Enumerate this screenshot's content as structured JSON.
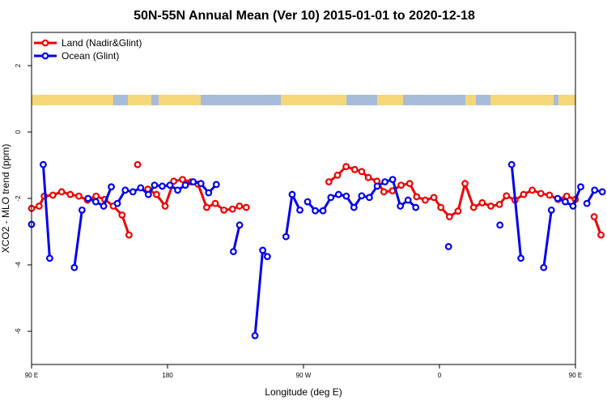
{
  "chart_data": {
    "type": "line",
    "title": "50N-55N Annual Mean (Ver 10)   2015-01-01 to 2020-12-18",
    "xlabel": "Longitude (deg E)",
    "ylabel": "XCO2 - MLO trend (ppm)",
    "xlim": [
      90,
      450
    ],
    "ylim": [
      -7,
      3
    ],
    "x_ticks": [
      {
        "value": 90,
        "label": "90 E"
      },
      {
        "value": 180,
        "label": "180"
      },
      {
        "value": 270,
        "label": "90 W"
      },
      {
        "value": 360,
        "label": "0"
      },
      {
        "value": 450,
        "label": "90 E"
      },
      {
        "value": 540,
        "label": "180"
      }
    ],
    "y_ticks": [
      -6,
      -4,
      -2,
      0,
      2
    ],
    "legend_position": "top-left",
    "grid": false,
    "land_mask_color": "#f5d77a",
    "ocean_mask_color": "#a7bcd8",
    "series": [
      {
        "name": "Land (Nadir&Glint)",
        "color": "#ee0000",
        "segments": [
          [
            [
              90.0,
              -2.3
            ],
            [
              95.0,
              -2.23
            ],
            [
              98.4,
              -1.93
            ],
            [
              104.1,
              -1.9
            ],
            [
              109.9,
              -1.8
            ],
            [
              115.6,
              -1.88
            ],
            [
              121.3,
              -1.93
            ],
            [
              127.0,
              -2.05
            ],
            [
              132.7,
              -1.93
            ],
            [
              138.4,
              -2.03
            ],
            [
              144.1,
              -2.23
            ],
            [
              149.9,
              -2.5
            ],
            [
              154.5,
              -3.1
            ]
          ],
          [
            [
              160.2,
              -0.98
            ]
          ],
          [
            [
              167.0,
              -1.72
            ],
            [
              172.7,
              -1.88
            ],
            [
              178.4,
              -2.23
            ],
            [
              184.1,
              -1.48
            ],
            [
              189.9,
              -1.43
            ],
            [
              195.6,
              -1.5
            ],
            [
              200.2,
              -1.57
            ],
            [
              205.9,
              -2.27
            ],
            [
              211.6,
              -2.15
            ],
            [
              217.3,
              -2.35
            ],
            [
              223.0,
              -2.32
            ],
            [
              227.6,
              -2.23
            ],
            [
              232.1,
              -2.27
            ]
          ],
          [
            [
              286.8,
              -1.5
            ],
            [
              292.5,
              -1.3
            ],
            [
              298.2,
              -1.04
            ],
            [
              303.9,
              -1.13
            ],
            [
              308.5,
              -1.19
            ],
            [
              312.9,
              -1.37
            ],
            [
              318.6,
              -1.48
            ],
            [
              323.2,
              -1.8
            ],
            [
              328.9,
              -1.77
            ],
            [
              334.6,
              -1.6
            ],
            [
              340.3,
              -1.55
            ],
            [
              344.9,
              -1.95
            ],
            [
              350.6,
              -2.05
            ],
            [
              356.3,
              -1.97
            ],
            [
              360.9,
              -2.27
            ],
            [
              366.6,
              -2.55
            ],
            [
              372.3,
              -2.38
            ],
            [
              376.9,
              -1.55
            ],
            [
              382.6,
              -2.27
            ],
            [
              388.3,
              -2.13
            ],
            [
              394.0,
              -2.23
            ],
            [
              399.7,
              -2.18
            ],
            [
              404.3,
              -1.92
            ],
            [
              410.0,
              -2.05
            ],
            [
              415.7,
              -1.88
            ],
            [
              421.4,
              -1.75
            ],
            [
              427.1,
              -1.85
            ],
            [
              432.8,
              -1.9
            ],
            [
              438.5,
              -2.03
            ],
            [
              444.2,
              -1.93
            ],
            [
              449.9,
              -2.03
            ]
          ],
          [
            [
              462.4,
              -2.55
            ],
            [
              466.9,
              -3.1
            ]
          ]
        ]
      },
      {
        "name": "Ocean (Glint)",
        "color": "#0000ee",
        "segments": [
          [
            [
              90.0,
              -2.78
            ]
          ],
          [
            [
              97.7,
              -0.98
            ],
            [
              102.0,
              -3.8
            ]
          ],
          [
            [
              118.3,
              -4.08
            ],
            [
              123.4,
              -2.35
            ]
          ],
          [
            [
              127.4,
              -2.0
            ],
            [
              132.5,
              -2.1
            ],
            [
              137.7,
              -2.23
            ],
            [
              142.8,
              -1.65
            ]
          ],
          [
            [
              146.8,
              -2.15
            ],
            [
              152.0,
              -1.75
            ],
            [
              157.1,
              -1.8
            ],
            [
              162.2,
              -1.68
            ],
            [
              167.3,
              -1.88
            ],
            [
              171.4,
              -1.6
            ],
            [
              176.5,
              -1.63
            ],
            [
              181.6,
              -1.6
            ],
            [
              186.7,
              -1.75
            ],
            [
              191.8,
              -1.6
            ],
            [
              197.0,
              -1.5
            ],
            [
              202.1,
              -1.55
            ],
            [
              207.2,
              -1.83
            ],
            [
              212.3,
              -1.58
            ]
          ],
          [
            [
              223.6,
              -3.6
            ],
            [
              227.7,
              -2.8
            ]
          ],
          [
            [
              237.9,
              -6.13
            ],
            [
              243.0,
              -3.56
            ],
            [
              246.1,
              -3.75
            ]
          ],
          [
            [
              258.4,
              -3.15
            ],
            [
              262.5,
              -1.88
            ],
            [
              267.6,
              -2.35
            ]
          ],
          [
            [
              272.7,
              -2.1
            ],
            [
              277.8,
              -2.37
            ],
            [
              282.9,
              -2.37
            ],
            [
              288.1,
              -1.97
            ],
            [
              293.2,
              -1.88
            ],
            [
              298.3,
              -1.93
            ],
            [
              303.4,
              -2.27
            ],
            [
              308.5,
              -1.92
            ],
            [
              313.6,
              -1.97
            ],
            [
              318.8,
              -1.63
            ],
            [
              323.9,
              -1.5
            ],
            [
              329.0,
              -1.43
            ],
            [
              334.1,
              -2.23
            ],
            [
              339.2,
              -2.05
            ],
            [
              344.3,
              -2.27
            ]
          ],
          [
            [
              366.0,
              -3.45
            ]
          ],
          [
            [
              400.0,
              -2.8
            ]
          ],
          [
            [
              407.8,
              -0.98
            ],
            [
              413.9,
              -3.8
            ]
          ],
          [
            [
              429.0,
              -4.08
            ],
            [
              434.1,
              -2.35
            ]
          ],
          [
            [
              438.2,
              -2.0
            ],
            [
              443.3,
              -2.1
            ],
            [
              448.4,
              -2.23
            ],
            [
              453.5,
              -1.65
            ]
          ],
          [
            [
              457.6,
              -2.15
            ],
            [
              462.7,
              -1.75
            ],
            [
              467.8,
              -1.8
            ]
          ]
        ]
      }
    ]
  }
}
